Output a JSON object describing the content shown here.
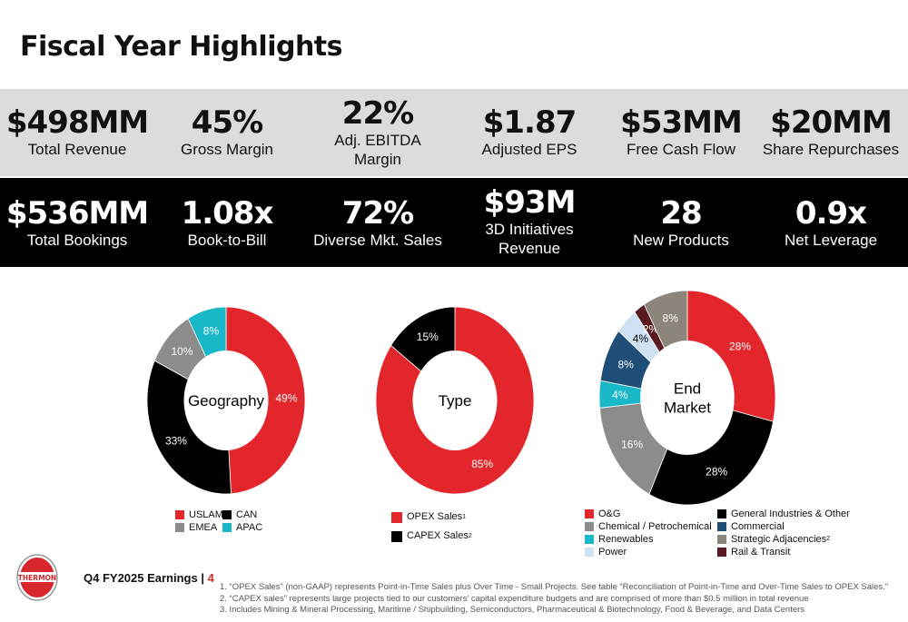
{
  "title": "Fiscal Year Highlights",
  "row1": [
    {
      "value": "$498MM",
      "label": "Total Revenue"
    },
    {
      "value": "45%",
      "label": "Gross Margin"
    },
    {
      "value": "22%",
      "label": "Adj. EBITDA Margin"
    },
    {
      "value": "$1.87",
      "label": "Adjusted EPS"
    },
    {
      "value": "$53MM",
      "label": "Free Cash Flow"
    },
    {
      "value": "$20MM",
      "label": "Share Repurchases"
    }
  ],
  "row2": [
    {
      "value": "$536MM",
      "label": "Total Bookings"
    },
    {
      "value": "1.08x",
      "label": "Book-to-Bill"
    },
    {
      "value": "72%",
      "label": "Diverse Mkt. Sales"
    },
    {
      "value": "$93M",
      "label": "3D Initiatives Revenue"
    },
    {
      "value": "28",
      "label": "New Products"
    },
    {
      "value": "0.9x",
      "label": "Net Leverage"
    }
  ],
  "donuts": [
    {
      "center_label": [
        "Geography"
      ],
      "slices": [
        {
          "label": "49%",
          "value": 49,
          "color": "#e3262b"
        },
        {
          "label": "33%",
          "value": 33,
          "color": "#000000"
        },
        {
          "label": "10%",
          "value": 10,
          "color": "#8c8c8c"
        },
        {
          "label": "8%",
          "value": 8,
          "color": "#19b8c8"
        }
      ],
      "legend": [
        {
          "name": "USLAM",
          "color": "#e3262b"
        },
        {
          "name": "CAN",
          "color": "#000000"
        },
        {
          "name": "EMEA",
          "color": "#8c8c8c"
        },
        {
          "name": "APAC",
          "color": "#19b8c8"
        }
      ]
    },
    {
      "center_label": [
        "Type"
      ],
      "slices": [
        {
          "label": "85%",
          "value": 85,
          "color": "#e3262b"
        },
        {
          "label": "15%",
          "value": 15,
          "color": "#000000"
        }
      ],
      "legend": [
        {
          "name": "OPEX Sales",
          "sup": "1",
          "color": "#e3262b"
        },
        {
          "name": "CAPEX Sales",
          "sup": "2",
          "color": "#000000"
        }
      ]
    },
    {
      "center_label": [
        "End",
        "Market"
      ],
      "slices": [
        {
          "label": "28%",
          "value": 28,
          "color": "#e3262b"
        },
        {
          "label": "28%",
          "value": 28,
          "color": "#000000"
        },
        {
          "label": "16%",
          "value": 16,
          "color": "#8c8c8c"
        },
        {
          "label": "4%",
          "value": 4,
          "color": "#19b8c8"
        },
        {
          "label": "8%",
          "value": 8,
          "color": "#1f4e79"
        },
        {
          "label": "4%",
          "value": 4,
          "color": "#cfe2f3"
        },
        {
          "label": "2%",
          "value": 2,
          "color": "#5a1a1f"
        },
        {
          "label": "8%",
          "value": 8,
          "color": "#8b857b"
        }
      ],
      "legend": [
        {
          "name": "O&G",
          "color": "#e3262b"
        },
        {
          "name": "General Industries & Other",
          "color": "#000000"
        },
        {
          "name": "Chemical / Petrochemical",
          "color": "#8c8c8c"
        },
        {
          "name": "Commercial",
          "color": "#1f4e79"
        },
        {
          "name": "Renewables",
          "color": "#19b8c8"
        },
        {
          "name": "Strategic Adjacencies",
          "sup": "2",
          "color": "#8b857b"
        },
        {
          "name": "Power",
          "color": "#cfe2f3"
        },
        {
          "name": "Rail & Transit",
          "color": "#5a1a1f"
        }
      ]
    }
  ],
  "logo_text": "THERMON",
  "footer": {
    "earnings": "Q4 FY2025 Earnings | ",
    "page": "4",
    "notes": [
      "1.    “OPEX Sales” (non-GAAP) represents Point-in-Time Sales plus Over Time - Small Projects. See table “Reconciliation of Point-in-Time and Over-Time Sales to OPEX Sales.”",
      "2.    “CAPEX sales” represents large projects tied to our customers’ capital expenditure budgets and are comprised of more than $0.5 million in total revenue",
      "3.      Includes Mining & Mineral Processing, Maritime / Shipbuilding, Semiconductors, Pharmaceutical & Biotechnology, Food & Beverage, and Data Centers"
    ]
  }
}
